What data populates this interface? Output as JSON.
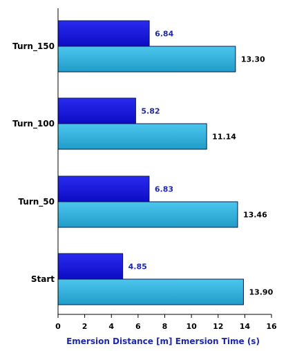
{
  "chart_data": {
    "type": "bar",
    "orientation": "horizontal",
    "categories": [
      "Start",
      "Turn_50",
      "Turn_100",
      "Turn_150"
    ],
    "series": [
      {
        "name": "Emersion Distance [m]",
        "values": [
          4.85,
          6.83,
          5.82,
          6.84
        ],
        "color": "#1212d8",
        "label_color": "#1c27b0"
      },
      {
        "name": "Emersion Time (s)",
        "values": [
          13.9,
          13.46,
          11.14,
          13.3
        ],
        "color": "#2eb2de",
        "label_color": "#000000"
      }
    ],
    "value_labels": [
      [
        "4.85",
        "6.83",
        "5.82",
        "6.84"
      ],
      [
        "13.90",
        "13.46",
        "11.14",
        "13.30"
      ]
    ],
    "xlabel": "Emersion Distance [m] Emersion Time (s)",
    "xlim": [
      0,
      16
    ],
    "xticks": [
      "0",
      "2",
      "4",
      "6",
      "8",
      "10",
      "12",
      "14",
      "16"
    ],
    "legend": "none",
    "grid": false
  }
}
